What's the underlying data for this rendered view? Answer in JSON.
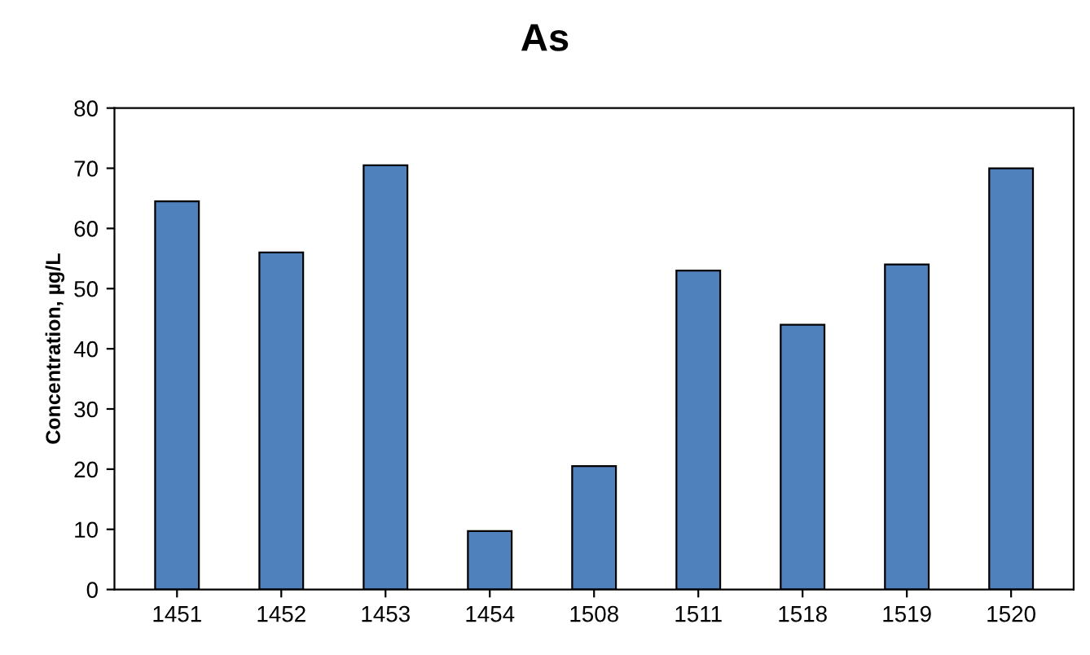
{
  "chart_data": {
    "type": "bar",
    "title": "As",
    "ylabel": "Concentration, µg/L",
    "categories": [
      "1451",
      "1452",
      "1453",
      "1454",
      "1508",
      "1511",
      "1518",
      "1519",
      "1520"
    ],
    "values": [
      64.5,
      56,
      70.5,
      9.7,
      20.5,
      53,
      44,
      54,
      70
    ],
    "color": "#4f81bd",
    "ylim": [
      0,
      80
    ],
    "yticks": [
      0,
      10,
      20,
      30,
      40,
      50,
      60,
      70,
      80
    ],
    "grid": false,
    "legend": false
  }
}
